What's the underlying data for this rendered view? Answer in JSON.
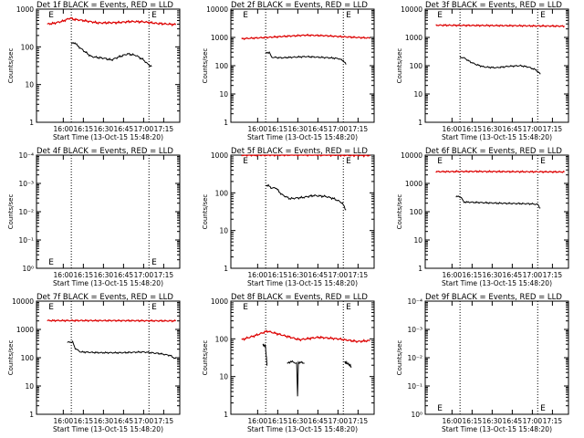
{
  "chart_data": [
    {
      "type": "line",
      "title": "Det 1f BLACK = Events, RED = LLD",
      "ylabel": "Counts/sec",
      "xlabel": "Start Time (13-Oct-15 15:48:20)",
      "x_ticks": [
        "16:00",
        "16:15",
        "16:30",
        "16:45",
        "17:00",
        "17:15"
      ],
      "y_ticks": [
        "1",
        "10",
        "100",
        "1000"
      ],
      "ylim": [
        1,
        1500
      ],
      "log_y": true,
      "vlines_hhmm": [
        "16:06",
        "17:04"
      ],
      "markers": [
        {
          "label": "E",
          "at": "15:49"
        },
        {
          "label": "E",
          "at": "17:06"
        }
      ],
      "series": [
        {
          "color": "#dd0000",
          "start": "15:48",
          "end": "17:24",
          "points": [
            [
              0,
              400
            ],
            [
              0.05,
              420
            ],
            [
              0.12,
              480
            ],
            [
              0.18,
              580
            ],
            [
              0.2,
              540
            ],
            [
              0.28,
              500
            ],
            [
              0.4,
              430
            ],
            [
              0.55,
              440
            ],
            [
              0.65,
              470
            ],
            [
              0.75,
              460
            ],
            [
              0.85,
              420
            ],
            [
              1,
              390
            ]
          ]
        },
        {
          "color": "#000000",
          "start": "16:06",
          "end": "17:06",
          "points": [
            [
              0,
              120
            ],
            [
              0.05,
              130
            ],
            [
              0.07,
              110
            ],
            [
              0.15,
              80
            ],
            [
              0.25,
              55
            ],
            [
              0.4,
              50
            ],
            [
              0.5,
              45
            ],
            [
              0.6,
              55
            ],
            [
              0.7,
              65
            ],
            [
              0.8,
              60
            ],
            [
              0.9,
              45
            ],
            [
              0.95,
              35
            ],
            [
              1,
              30
            ]
          ]
        }
      ]
    },
    {
      "type": "line",
      "title": "Det 2f BLACK = Events, RED = LLD",
      "ylabel": "Counts/sec",
      "xlabel": "Start Time (13-Oct-15 15:48:20)",
      "x_ticks": [
        "16:00",
        "16:15",
        "16:30",
        "16:45",
        "17:00",
        "17:15"
      ],
      "y_ticks": [
        "1",
        "10",
        "100",
        "1000",
        "10000"
      ],
      "ylim": [
        1,
        15000
      ],
      "log_y": true,
      "vlines_hhmm": [
        "16:06",
        "17:04"
      ],
      "markers": [
        {
          "label": "E",
          "at": "15:49"
        },
        {
          "label": "E",
          "at": "17:06"
        }
      ],
      "series": [
        {
          "color": "#dd0000",
          "start": "15:48",
          "end": "17:24",
          "points": [
            [
              0,
              900
            ],
            [
              0.2,
              1000
            ],
            [
              0.35,
              1100
            ],
            [
              0.5,
              1200
            ],
            [
              0.65,
              1150
            ],
            [
              0.8,
              1050
            ],
            [
              1,
              950
            ]
          ]
        },
        {
          "color": "#000000",
          "start": "16:06",
          "end": "17:06",
          "points": [
            [
              0,
              280
            ],
            [
              0.05,
              300
            ],
            [
              0.07,
              200
            ],
            [
              0.2,
              190
            ],
            [
              0.35,
              200
            ],
            [
              0.5,
              210
            ],
            [
              0.65,
              200
            ],
            [
              0.8,
              190
            ],
            [
              0.9,
              180
            ],
            [
              0.97,
              150
            ],
            [
              1,
              110
            ]
          ]
        }
      ]
    },
    {
      "type": "line",
      "title": "Det 3f BLACK = Events, RED = LLD",
      "ylabel": "Counts/sec",
      "xlabel": "Start Time (13-Oct-15 15:48:20)",
      "x_ticks": [
        "16:00",
        "16:15",
        "16:30",
        "16:45",
        "17:00",
        "17:15"
      ],
      "y_ticks": [
        "1",
        "10",
        "100",
        "1000",
        "10000"
      ],
      "ylim": [
        1,
        15000
      ],
      "log_y": true,
      "vlines_hhmm": [
        "16:06",
        "17:04"
      ],
      "markers": [
        {
          "label": "E",
          "at": "15:49"
        },
        {
          "label": "E",
          "at": "17:06"
        }
      ],
      "series": [
        {
          "color": "#dd0000",
          "start": "15:48",
          "end": "17:24",
          "points": [
            [
              0,
              2700
            ],
            [
              0.3,
              2650
            ],
            [
              0.6,
              2600
            ],
            [
              1,
              2500
            ]
          ]
        },
        {
          "color": "#000000",
          "start": "16:06",
          "end": "17:06",
          "points": [
            [
              0,
              200
            ],
            [
              0.05,
              190
            ],
            [
              0.12,
              140
            ],
            [
              0.2,
              110
            ],
            [
              0.3,
              90
            ],
            [
              0.45,
              85
            ],
            [
              0.6,
              95
            ],
            [
              0.75,
              100
            ],
            [
              0.85,
              90
            ],
            [
              0.95,
              70
            ],
            [
              1,
              50
            ]
          ]
        }
      ]
    },
    {
      "type": "line",
      "title": "Det 4f BLACK = Events, RED = LLD",
      "ylabel": "Counts/sec",
      "xlabel": "Start Time (13-Oct-15 15:48:20)",
      "x_ticks": [
        "16:00",
        "16:15",
        "16:30",
        "16:45",
        "17:00",
        "17:15"
      ],
      "y_ticks": [
        "10⁰",
        "10⁻¹",
        "10⁻²",
        "10⁻³",
        "10⁻⁴"
      ],
      "log_y": true,
      "vlines_hhmm": [
        "16:06",
        "17:04"
      ],
      "markers": [
        {
          "label": "E",
          "at": "15:49"
        },
        {
          "label": "E",
          "at": "17:06"
        }
      ],
      "series": []
    },
    {
      "type": "line",
      "title": "Det 5f BLACK = Events, RED = LLD",
      "ylabel": "Counts/sec",
      "xlabel": "Start Time (13-Oct-15 15:48:20)",
      "x_ticks": [
        "16:00",
        "16:15",
        "16:30",
        "16:45",
        "17:00",
        "17:15"
      ],
      "y_ticks": [
        "1",
        "10",
        "100",
        "1000"
      ],
      "ylim": [
        1,
        1200
      ],
      "log_y": true,
      "vlines_hhmm": [
        "16:06",
        "17:04"
      ],
      "markers": [
        {
          "label": "E",
          "at": "15:49"
        },
        {
          "label": "E",
          "at": "17:06"
        }
      ],
      "series": [
        {
          "color": "#dd0000",
          "start": "15:48",
          "end": "17:24",
          "points": [
            [
              0,
              1000
            ],
            [
              0.5,
              1020
            ],
            [
              1,
              980
            ]
          ]
        },
        {
          "color": "#000000",
          "start": "16:06",
          "end": "17:06",
          "points": [
            [
              0,
              160
            ],
            [
              0.05,
              150
            ],
            [
              0.08,
              130
            ],
            [
              0.12,
              140
            ],
            [
              0.2,
              90
            ],
            [
              0.3,
              70
            ],
            [
              0.45,
              75
            ],
            [
              0.6,
              85
            ],
            [
              0.75,
              80
            ],
            [
              0.85,
              70
            ],
            [
              0.95,
              55
            ],
            [
              1,
              35
            ]
          ]
        }
      ]
    },
    {
      "type": "line",
      "title": "Det 6f BLACK = Events, RED = LLD",
      "ylabel": "Counts/sec",
      "xlabel": "Start Time (13-Oct-15 15:48:20)",
      "x_ticks": [
        "16:00",
        "16:15",
        "16:30",
        "16:45",
        "17:00",
        "17:15"
      ],
      "y_ticks": [
        "1",
        "10",
        "100",
        "1000",
        "10000"
      ],
      "ylim": [
        1,
        15000
      ],
      "log_y": true,
      "vlines_hhmm": [
        "16:06",
        "17:04"
      ],
      "markers": [
        {
          "label": "E",
          "at": "15:49"
        },
        {
          "label": "E",
          "at": "17:06"
        }
      ],
      "series": [
        {
          "color": "#dd0000",
          "start": "15:48",
          "end": "17:24",
          "points": [
            [
              0,
              2600
            ],
            [
              0.3,
              2650
            ],
            [
              0.6,
              2600
            ],
            [
              1,
              2550
            ]
          ]
        },
        {
          "color": "#000000",
          "start": "16:03",
          "end": "17:06",
          "points": [
            [
              0,
              350
            ],
            [
              0.06,
              330
            ],
            [
              0.09,
              220
            ],
            [
              0.3,
              210
            ],
            [
              0.5,
              200
            ],
            [
              0.7,
              195
            ],
            [
              0.9,
              190
            ],
            [
              0.97,
              180
            ],
            [
              1,
              130
            ]
          ]
        }
      ]
    },
    {
      "type": "line",
      "title": "Det 7f BLACK = Events, RED = LLD",
      "ylabel": "Counts/sec",
      "xlabel": "Start Time (13-Oct-15 15:48:20)",
      "x_ticks": [
        "16:00",
        "16:15",
        "16:30",
        "16:45",
        "17:00",
        "17:15"
      ],
      "y_ticks": [
        "1",
        "10",
        "100",
        "1000",
        "10000"
      ],
      "ylim": [
        1,
        15000
      ],
      "log_y": true,
      "vlines_hhmm": [
        "16:06",
        "17:04"
      ],
      "markers": [
        {
          "label": "E",
          "at": "15:49"
        },
        {
          "label": "E",
          "at": "17:06"
        }
      ],
      "series": [
        {
          "color": "#dd0000",
          "start": "15:48",
          "end": "17:24",
          "points": [
            [
              0,
              2050
            ],
            [
              0.5,
              2050
            ],
            [
              1,
              2000
            ]
          ]
        },
        {
          "color": "#000000",
          "start": "16:03",
          "end": "17:24",
          "points": [
            [
              0,
              350
            ],
            [
              0.05,
              360
            ],
            [
              0.07,
              220
            ],
            [
              0.12,
              160
            ],
            [
              0.3,
              150
            ],
            [
              0.5,
              150
            ],
            [
              0.7,
              160
            ],
            [
              0.85,
              140
            ],
            [
              0.95,
              120
            ],
            [
              1,
              90
            ]
          ]
        }
      ]
    },
    {
      "type": "line",
      "title": "Det 8f BLACK = Events, RED = LLD",
      "ylabel": "Counts/sec",
      "xlabel": "Start Time (13-Oct-15 15:48:20)",
      "x_ticks": [
        "16:00",
        "16:15",
        "16:30",
        "16:45",
        "17:00",
        "17:15"
      ],
      "y_ticks": [
        "1",
        "10",
        "100",
        "1000"
      ],
      "ylim": [
        1,
        1500
      ],
      "log_y": true,
      "vlines_hhmm": [
        "16:06",
        "17:04"
      ],
      "markers": [
        {
          "label": "E",
          "at": "15:49"
        },
        {
          "label": "E",
          "at": "17:06"
        }
      ],
      "series": [
        {
          "color": "#dd0000",
          "start": "15:48",
          "end": "17:24",
          "points": [
            [
              0,
              95
            ],
            [
              0.1,
              120
            ],
            [
              0.2,
              160
            ],
            [
              0.3,
              130
            ],
            [
              0.45,
              95
            ],
            [
              0.6,
              110
            ],
            [
              0.75,
              100
            ],
            [
              0.9,
              85
            ],
            [
              1,
              90
            ]
          ]
        },
        {
          "color": "#000000",
          "start": "16:04",
          "end": "16:07",
          "points": [
            [
              0,
              70
            ],
            [
              0.3,
              65
            ],
            [
              0.6,
              65
            ],
            [
              1,
              20
            ]
          ]
        },
        {
          "color": "#000000",
          "start": "16:22",
          "end": "16:35",
          "points": [
            [
              0,
              22
            ],
            [
              0.2,
              25
            ],
            [
              0.4,
              24
            ],
            [
              0.55,
              22
            ],
            [
              0.6,
              3
            ],
            [
              0.65,
              24
            ],
            [
              1,
              23
            ]
          ]
        },
        {
          "color": "#000000",
          "start": "17:05",
          "end": "17:10",
          "points": [
            [
              0,
              24
            ],
            [
              0.5,
              22
            ],
            [
              1,
              18
            ]
          ]
        }
      ]
    },
    {
      "type": "line",
      "title": "Det 9f BLACK = Events, RED = LLD",
      "ylabel": "Counts/sec",
      "xlabel": "Start Time (13-Oct-15 15:48:20)",
      "x_ticks": [
        "16:00",
        "16:15",
        "16:30",
        "16:45",
        "17:00",
        "17:15"
      ],
      "y_ticks": [
        "10⁰",
        "10⁻¹",
        "10⁻²",
        "10⁻³",
        "10⁻⁴"
      ],
      "log_y": true,
      "vlines_hhmm": [
        "16:06",
        "17:04"
      ],
      "markers": [
        {
          "label": "E",
          "at": "15:49"
        },
        {
          "label": "E",
          "at": "17:06"
        }
      ],
      "series": []
    }
  ]
}
